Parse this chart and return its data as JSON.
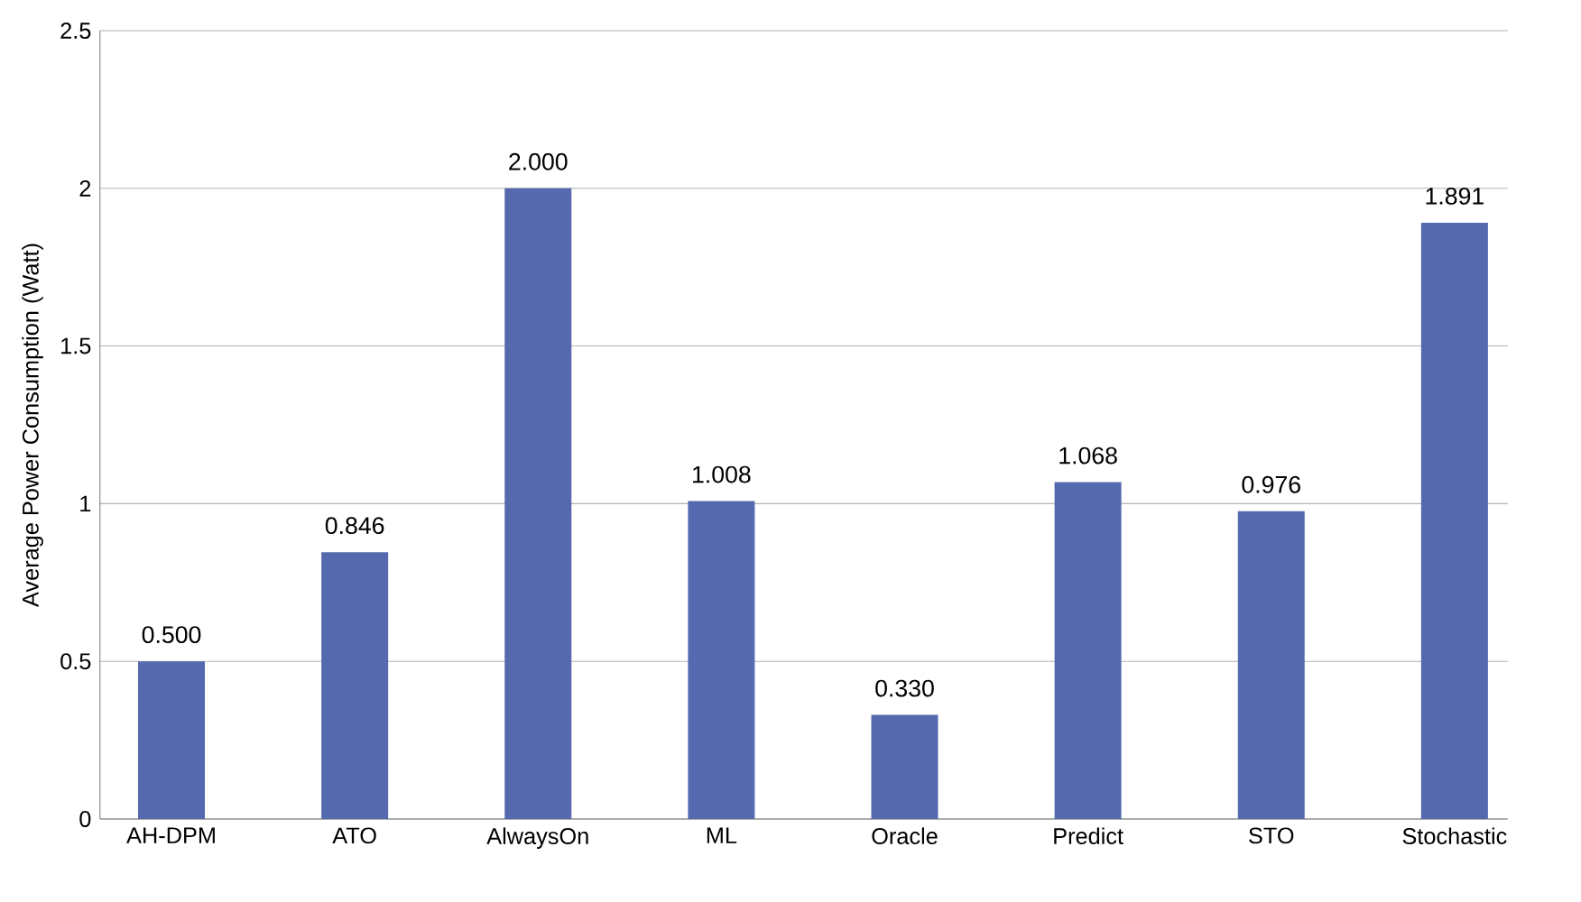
{
  "chart_data": {
    "type": "bar",
    "ylabel": "Average Power Consumption (Watt)",
    "categories": [
      "AH-DPM",
      "ATO",
      "AlwaysOn",
      "ML",
      "Oracle",
      "Predict",
      "STO",
      "Stochastic"
    ],
    "values": [
      0.5,
      0.846,
      2.0,
      1.008,
      0.33,
      1.068,
      0.976,
      1.891
    ],
    "value_labels": [
      "0.500",
      "0.846",
      "2.000",
      "1.008",
      "0.330",
      "1.068",
      "0.976",
      "1.891"
    ],
    "color": "#5469ae",
    "ylim": [
      0,
      2.5
    ],
    "yticks": [
      0,
      0.5,
      1,
      1.5,
      2,
      2.5
    ],
    "grid": "y"
  }
}
